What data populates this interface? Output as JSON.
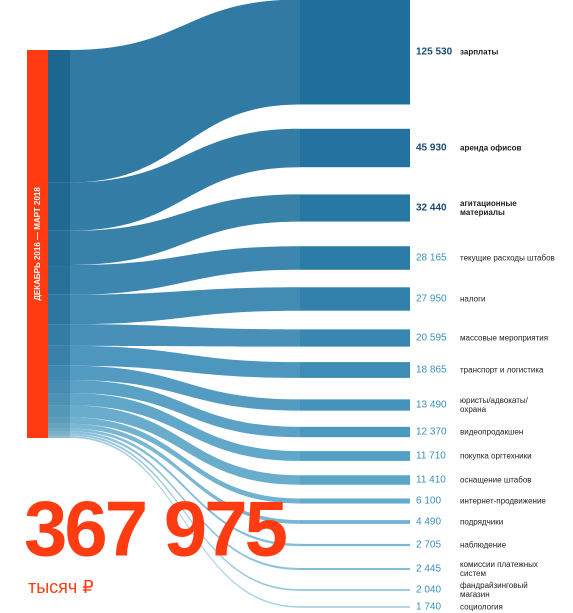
{
  "chart_data": {
    "type": "sankey",
    "period": "ДЕКАБРЬ 2016 — МАРТ 2018",
    "total": 367975,
    "total_label": "367 975",
    "unit": "тысяч ₽",
    "categories": [
      "зарплаты",
      "аренда офисов",
      "агитационные материалы",
      "текущие расходы штабов",
      "налоги",
      "массовые мероприятия",
      "транспорт и логистика",
      "юристы/адвокаты/ охрана",
      "видеопродакшен",
      "покупка оргтехники",
      "оснащение штабов",
      "интернет-продвижение",
      "подрядчики",
      "наблюдение",
      "комиссии платежных систем",
      "фандрайзинговый магазин",
      "социология"
    ],
    "values": [
      125530,
      45930,
      32440,
      28165,
      27950,
      20595,
      18865,
      13490,
      12370,
      11710,
      11410,
      6100,
      4490,
      2705,
      2445,
      2040,
      1740
    ],
    "value_labels": [
      "125 530",
      "45 930",
      "32 440",
      "28 165",
      "27 950",
      "20 595",
      "18 865",
      "13 490",
      "12 370",
      "11 710",
      "11 410",
      "6 100",
      "4 490",
      "2 705",
      "2 445",
      "2 040",
      "1 740"
    ],
    "colors": [
      "#1f6f9c",
      "#23729f",
      "#2777a3",
      "#2c7ca8",
      "#3281ad",
      "#3887b2",
      "#3e8db7",
      "#4593bc",
      "#4c99c0",
      "#549fc4",
      "#5ca5c8",
      "#65abcc",
      "#6fb1d0",
      "#79b7d4",
      "#84bdd8",
      "#8fc3dc",
      "#9ac9e0"
    ],
    "accent": "#ff3b12"
  }
}
